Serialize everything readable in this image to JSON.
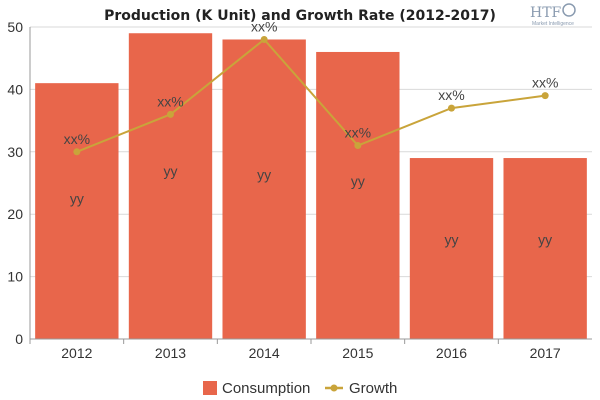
{
  "logo": {
    "mark": "HTF",
    "subtitle": "Market Intelligence"
  },
  "chart_data": {
    "type": "bar",
    "title": "Production (K Unit) and Growth Rate (2012-2017)",
    "categories": [
      "2012",
      "2013",
      "2014",
      "2015",
      "2016",
      "2017"
    ],
    "ylim": [
      0,
      50
    ],
    "yticks": [
      0,
      10,
      20,
      30,
      40,
      50
    ],
    "grid": true,
    "legend_position": "bottom",
    "series": [
      {
        "name": "Consumption",
        "type": "bar",
        "color": "#e8664b",
        "values": [
          41,
          49,
          48,
          46,
          29,
          29
        ],
        "labels": [
          "yy",
          "yy",
          "yy",
          "yy",
          "yy",
          "yy"
        ]
      },
      {
        "name": "Growth",
        "type": "line",
        "color": "#c9a43a",
        "values": [
          30,
          36,
          48,
          31,
          37,
          39
        ],
        "labels": [
          "xx%",
          "xx%",
          "xx%",
          "xx%",
          "xx%",
          "xx%"
        ]
      }
    ]
  }
}
